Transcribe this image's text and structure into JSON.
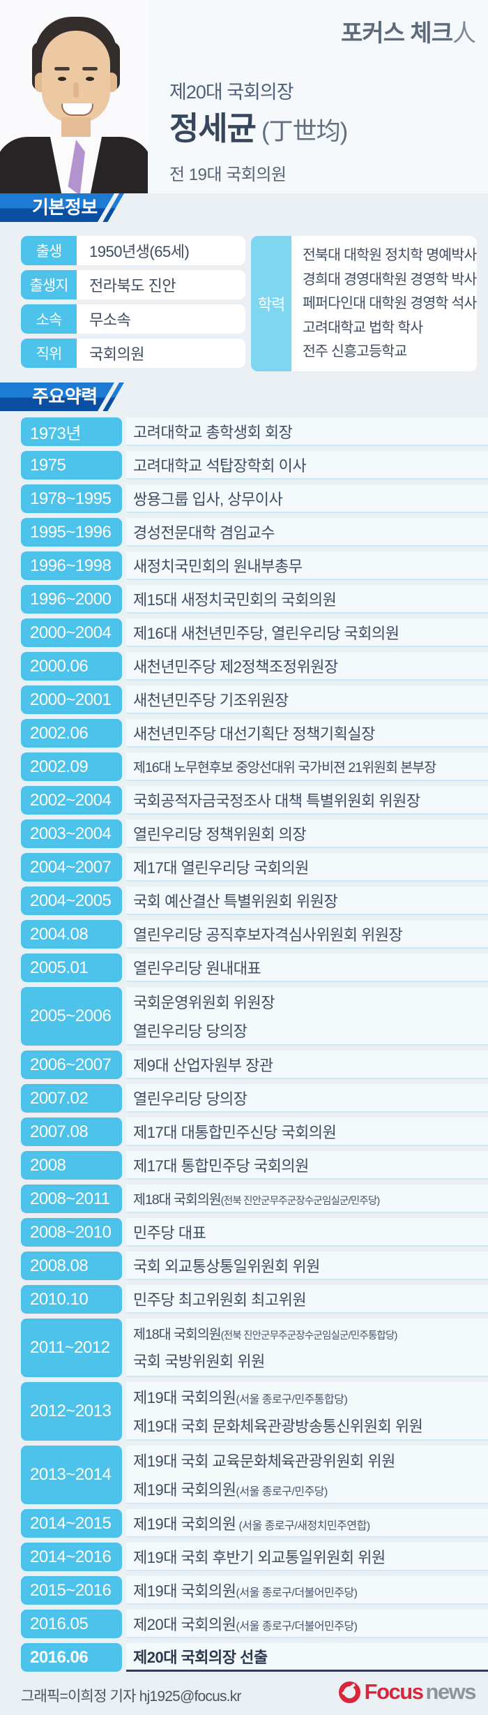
{
  "brand": {
    "text": "포커스 체크",
    "suffix": "人"
  },
  "profile": {
    "title": "제20대 국회의장",
    "name": "정세균",
    "hanja": "(丁世均)",
    "subtitle": "전 19대 국회의원"
  },
  "basic": {
    "section_title": "기본정보",
    "rows": [
      {
        "label": "출생",
        "value": "1950년생(65세)"
      },
      {
        "label": "출생지",
        "value": "전라북도 진안"
      },
      {
        "label": "소속",
        "value": "무소속"
      },
      {
        "label": "직위",
        "value": "국회의원"
      }
    ],
    "education": {
      "label": "학력",
      "items": [
        "전북대 대학원 정치학 명예박사",
        "경희대 경영대학원 경영학 박사",
        "페퍼다인대 대학원 경영학 석사",
        "고려대학교 법학 학사",
        "전주 신흥고등학교"
      ]
    }
  },
  "career": {
    "section_title": "주요약력",
    "rows": [
      {
        "year": "1973년",
        "lines": [
          {
            "text": "고려대학교 총학생회 회장"
          }
        ]
      },
      {
        "year": "1975",
        "lines": [
          {
            "text": "고려대학교 석탑장학회 이사"
          }
        ]
      },
      {
        "year": "1978~1995",
        "lines": [
          {
            "text": "쌍용그룹 입사, 상무이사"
          }
        ]
      },
      {
        "year": "1995~1996",
        "lines": [
          {
            "text": "경성전문대학 겸임교수"
          }
        ]
      },
      {
        "year": "1996~1998",
        "lines": [
          {
            "text": "새정치국민회의 원내부총무"
          }
        ]
      },
      {
        "year": "1996~2000",
        "lines": [
          {
            "text": "제15대 새정치국민회의 국회의원"
          }
        ]
      },
      {
        "year": "2000~2004",
        "lines": [
          {
            "text": "제16대 새천년민주당, 열린우리당 국회의원"
          }
        ]
      },
      {
        "year": "2000.06",
        "lines": [
          {
            "text": "새천년민주당 제2정책조정위원장"
          }
        ]
      },
      {
        "year": "2000~2001",
        "lines": [
          {
            "text": "새천년민주당 기조위원장"
          }
        ]
      },
      {
        "year": "2002.06",
        "lines": [
          {
            "text": "새천년민주당 대선기획단 정책기획실장"
          }
        ]
      },
      {
        "year": "2002.09",
        "lines": [
          {
            "text": "제16대 노무현후보 중앙선대위 국가비젼 21위원회 본부장"
          }
        ]
      },
      {
        "year": "2002~2004",
        "lines": [
          {
            "text": "국회공적자금국정조사 대책 특별위원회 위원장"
          }
        ]
      },
      {
        "year": "2003~2004",
        "lines": [
          {
            "text": "열린우리당 정책위원회 의장"
          }
        ]
      },
      {
        "year": "2004~2007",
        "lines": [
          {
            "text": "제17대 열린우리당 국회의원"
          }
        ]
      },
      {
        "year": "2004~2005",
        "lines": [
          {
            "text": "국회 예산결산 특별위원회 위원장"
          }
        ]
      },
      {
        "year": "2004.08",
        "lines": [
          {
            "text": "열린우리당 공직후보자격심사위원회 위원장"
          }
        ]
      },
      {
        "year": "2005.01",
        "lines": [
          {
            "text": "열린우리당 원내대표"
          }
        ]
      },
      {
        "year": "2005~2006",
        "lines": [
          {
            "text": "국회운영위원회 위원장"
          },
          {
            "text": "열린우리당 당의장"
          }
        ]
      },
      {
        "year": "2006~2007",
        "lines": [
          {
            "text": "제9대 산업자원부 장관"
          }
        ]
      },
      {
        "year": "2007.02",
        "lines": [
          {
            "text": "열린우리당 당의장"
          }
        ]
      },
      {
        "year": "2007.08",
        "lines": [
          {
            "text": "제17대 대통합민주신당 국회의원"
          }
        ]
      },
      {
        "year": "2008",
        "lines": [
          {
            "text": "제17대 통합민주당 국회의원"
          }
        ]
      },
      {
        "year": "2008~2011",
        "lines": [
          {
            "text": "제18대 국회의원",
            "note": "(전북 진안군무주군장수군임실군/민주당)"
          }
        ]
      },
      {
        "year": "2008~2010",
        "lines": [
          {
            "text": "민주당 대표"
          }
        ]
      },
      {
        "year": "2008.08",
        "lines": [
          {
            "text": "국회 외교통상통일위원회 위원"
          }
        ]
      },
      {
        "year": "2010.10",
        "lines": [
          {
            "text": "민주당 최고위원회 최고위원"
          }
        ]
      },
      {
        "year": "2011~2012",
        "lines": [
          {
            "text": "제18대 국회의원",
            "note": "(전북 진안군무주군장수군임실군/민주통합당)"
          },
          {
            "text": "국회 국방위원회 위원"
          }
        ]
      },
      {
        "year": "2012~2013",
        "lines": [
          {
            "text": "제19대 국회의원",
            "note": "(서울 종로구/민주통합당)"
          },
          {
            "text": "제19대 국회 문화체육관광방송통신위원회 위원"
          }
        ]
      },
      {
        "year": "2013~2014",
        "lines": [
          {
            "text": "제19대 국회 교육문화체육관광위원회 위원"
          },
          {
            "text": "제19대 국회의원",
            "note": "(서울 종로구/민주당)"
          }
        ]
      },
      {
        "year": "2014~2015",
        "lines": [
          {
            "text": "제19대 국회의원",
            "note": " (서울 종로구/새정치민주연합)"
          }
        ]
      },
      {
        "year": "2014~2016",
        "lines": [
          {
            "text": "제19대 국회 후반기 외교통일위원회 위원"
          }
        ]
      },
      {
        "year": "2015~2016",
        "lines": [
          {
            "text": "제19대 국회의원",
            "note": "(서울 종로구/더불어민주당)"
          }
        ]
      },
      {
        "year": "2016.05",
        "lines": [
          {
            "text": "제20대 국회의원",
            "note": "(서울 종로구/더불어민주당)"
          }
        ]
      },
      {
        "year": "2016.06",
        "highlight": true,
        "lines": [
          {
            "text": "제20대 국회의장 선출"
          }
        ]
      }
    ]
  },
  "footer": {
    "credit": "그래픽=이희정 기자 hj1925@focus.kr",
    "logo_focus": "Focus",
    "logo_news": "news"
  },
  "colors": {
    "accent_blue": "#4dc2ea",
    "education_blue": "#7fd6f0",
    "ribbon_light_blue": "#1d7bd4",
    "ribbon_dark_blue": "#0b4fa3",
    "highlight_navy": "#2f3d56",
    "logo_red": "#d8263b"
  }
}
